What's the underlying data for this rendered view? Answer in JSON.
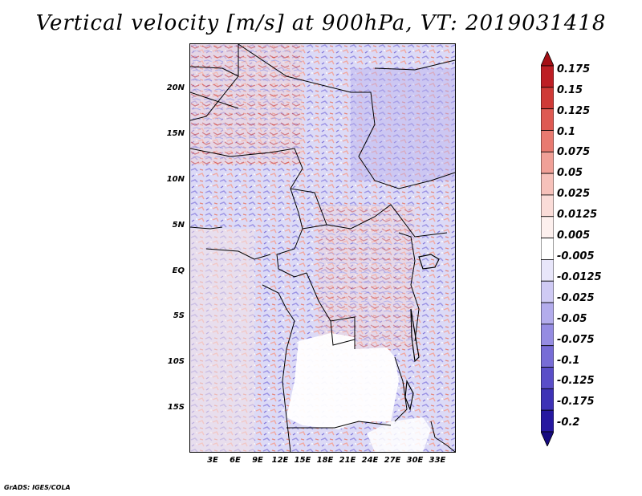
{
  "title": "Vertical velocity [m/s] at 900hPa, VT: 2019031418",
  "lat_labels": [
    "20N",
    "15N",
    "10N",
    "5N",
    "EQ",
    "5S",
    "10S",
    "15S"
  ],
  "lon_labels": [
    "3E",
    "6E",
    "9E",
    "12E",
    "15E",
    "18E",
    "21E",
    "24E",
    "27E",
    "30E",
    "33E"
  ],
  "colorbar": {
    "labels": [
      "0.175",
      "0.15",
      "0.125",
      "0.1",
      "0.075",
      "0.05",
      "0.025",
      "0.0125",
      "0.005",
      "-0.005",
      "-0.0125",
      "-0.025",
      "-0.05",
      "-0.075",
      "-0.1",
      "-0.125",
      "-0.175",
      "-0.2"
    ],
    "colors": [
      "#a50f15",
      "#bd1e24",
      "#cf3a36",
      "#de5a52",
      "#e87a70",
      "#f0a097",
      "#f6c1ba",
      "#fadcd8",
      "#fdf0ee",
      "#ffffff",
      "#e8e6fa",
      "#cfcaf4",
      "#b3acec",
      "#958ce2",
      "#776cd6",
      "#5a4ec8",
      "#3e32b6",
      "#2618a0",
      "#160a80"
    ]
  },
  "credit": "GrADS: IGES/COLA"
}
